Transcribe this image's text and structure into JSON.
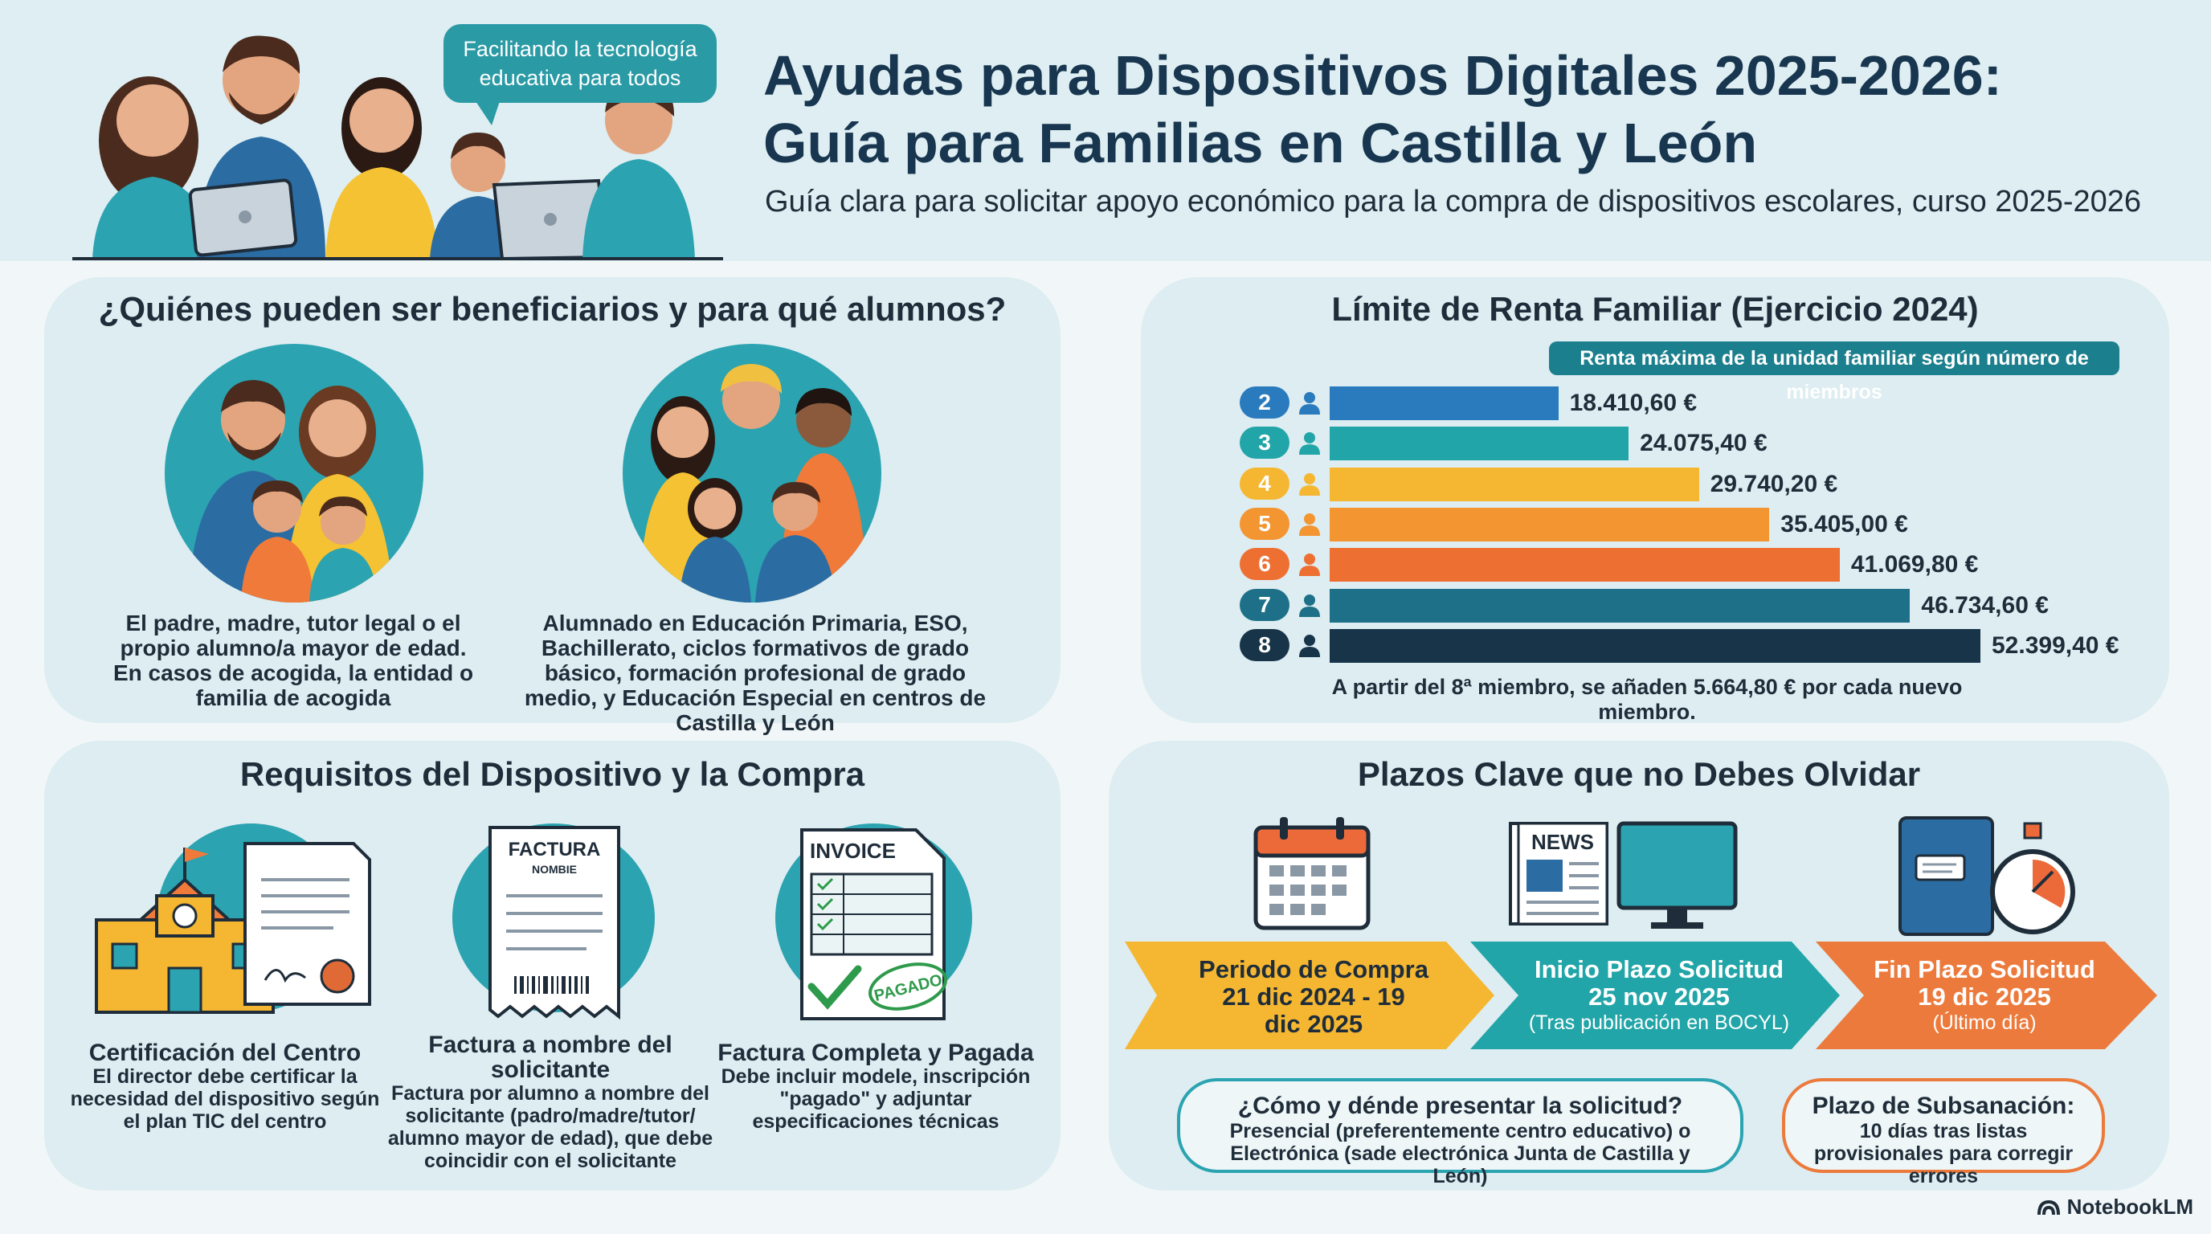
{
  "header": {
    "speech_bubble": "Facilitando la tecnología educativa para todos",
    "title_line1": "Ayudas para Dispositivos Digitales 2025-2026:",
    "title_line2": "Guía para Familias en Castilla y León",
    "subtitle": "Guía clara para solicitar apoyo económico para la compra de dispositivos escolares, curso 2025-2026"
  },
  "beneficiaries": {
    "title": "¿Quiénes pueden ser beneficiarios y para qué alumnos?",
    "left_text": "El padre, madre, tutor legal o el propio alumno/a mayor de edad. En casos de acogida, la entidad o familia de acogida",
    "right_text": "Alumnado en Educación Primaria, ESO, Bachillerato, ciclos formativos de grado básico, formación profesional de grado medio, y Educación Especial en centros de Castilla y León"
  },
  "income": {
    "title": "Límite de Renta Familiar (Ejercicio 2024)",
    "legend": "Renta máxima de la unidad familiar según número de miembros",
    "note": "A partir del 8ª miembro, se añaden 5.664,80 € por cada nuevo miembro.",
    "chart_data": {
      "type": "bar",
      "orientation": "horizontal",
      "categories": [
        "2",
        "3",
        "4",
        "5",
        "6",
        "7",
        "8"
      ],
      "values": [
        18410.6,
        24075.4,
        29740.2,
        35405.0,
        41069.8,
        46734.6,
        52399.4
      ],
      "value_labels": [
        "18.410,60 €",
        "24.075,40 €",
        "29.740,20 €",
        "35.405,00 €",
        "41.069,80 €",
        "46.734,60 €",
        "52.399,40 €"
      ],
      "colors": [
        "#2a7bbd",
        "#22a5a8",
        "#f5b731",
        "#f39531",
        "#ee6f32",
        "#1d7088",
        "#173449"
      ],
      "xlim": [
        0,
        52399.4
      ]
    }
  },
  "requirements": {
    "title": "Requisitos del Dispositivo y la Compra",
    "items": [
      {
        "heading": "Certificación del Centro",
        "body": "El director debe certificar la necesidad del dispositivo según el plan TIC del centro"
      },
      {
        "heading": "Factura a nombre del solicitante",
        "body": "Factura por alumno a nombre del solicitante (padro/madre/tutor/ alumno mayor de edad), que debe coincidir con el solicitante"
      },
      {
        "heading": "Factura Completa y Pagada",
        "body": "Debe incluir modele, inscripción \"pagado\" y adjuntar especificaciones técnicas"
      }
    ],
    "icon_text": {
      "factura": "FACTURA",
      "nombre": "NOMBIE",
      "invoice": "INVOICE",
      "pagado": "PAGADO"
    }
  },
  "deadlines": {
    "title": "Plazos Clave que no Debes Olvidar",
    "news_label": "NEWS",
    "steps": [
      {
        "title": "Periodo de Compra",
        "date": "21 dic 2024 - 19 dic 2025",
        "note": ""
      },
      {
        "title": "Inicio Plazo Solicitud",
        "date": "25 nov 2025",
        "note": "(Tras publicación en BOCYL)"
      },
      {
        "title": "Fin Plazo Solicitud",
        "date": "19 dic 2025",
        "note": "(Último día)"
      }
    ],
    "how_title": "¿Cómo y dénde presentar la solicitud?",
    "how_body": "Presencial (preferentemente centro educativo) o Electrónica (sade electrónica Junta de Castilla y León)",
    "fix_title": "Plazo de Subsanación:",
    "fix_body": "10 días tras listas provisionales para corregir errores"
  },
  "footer": {
    "brand": "NotebookLM"
  }
}
